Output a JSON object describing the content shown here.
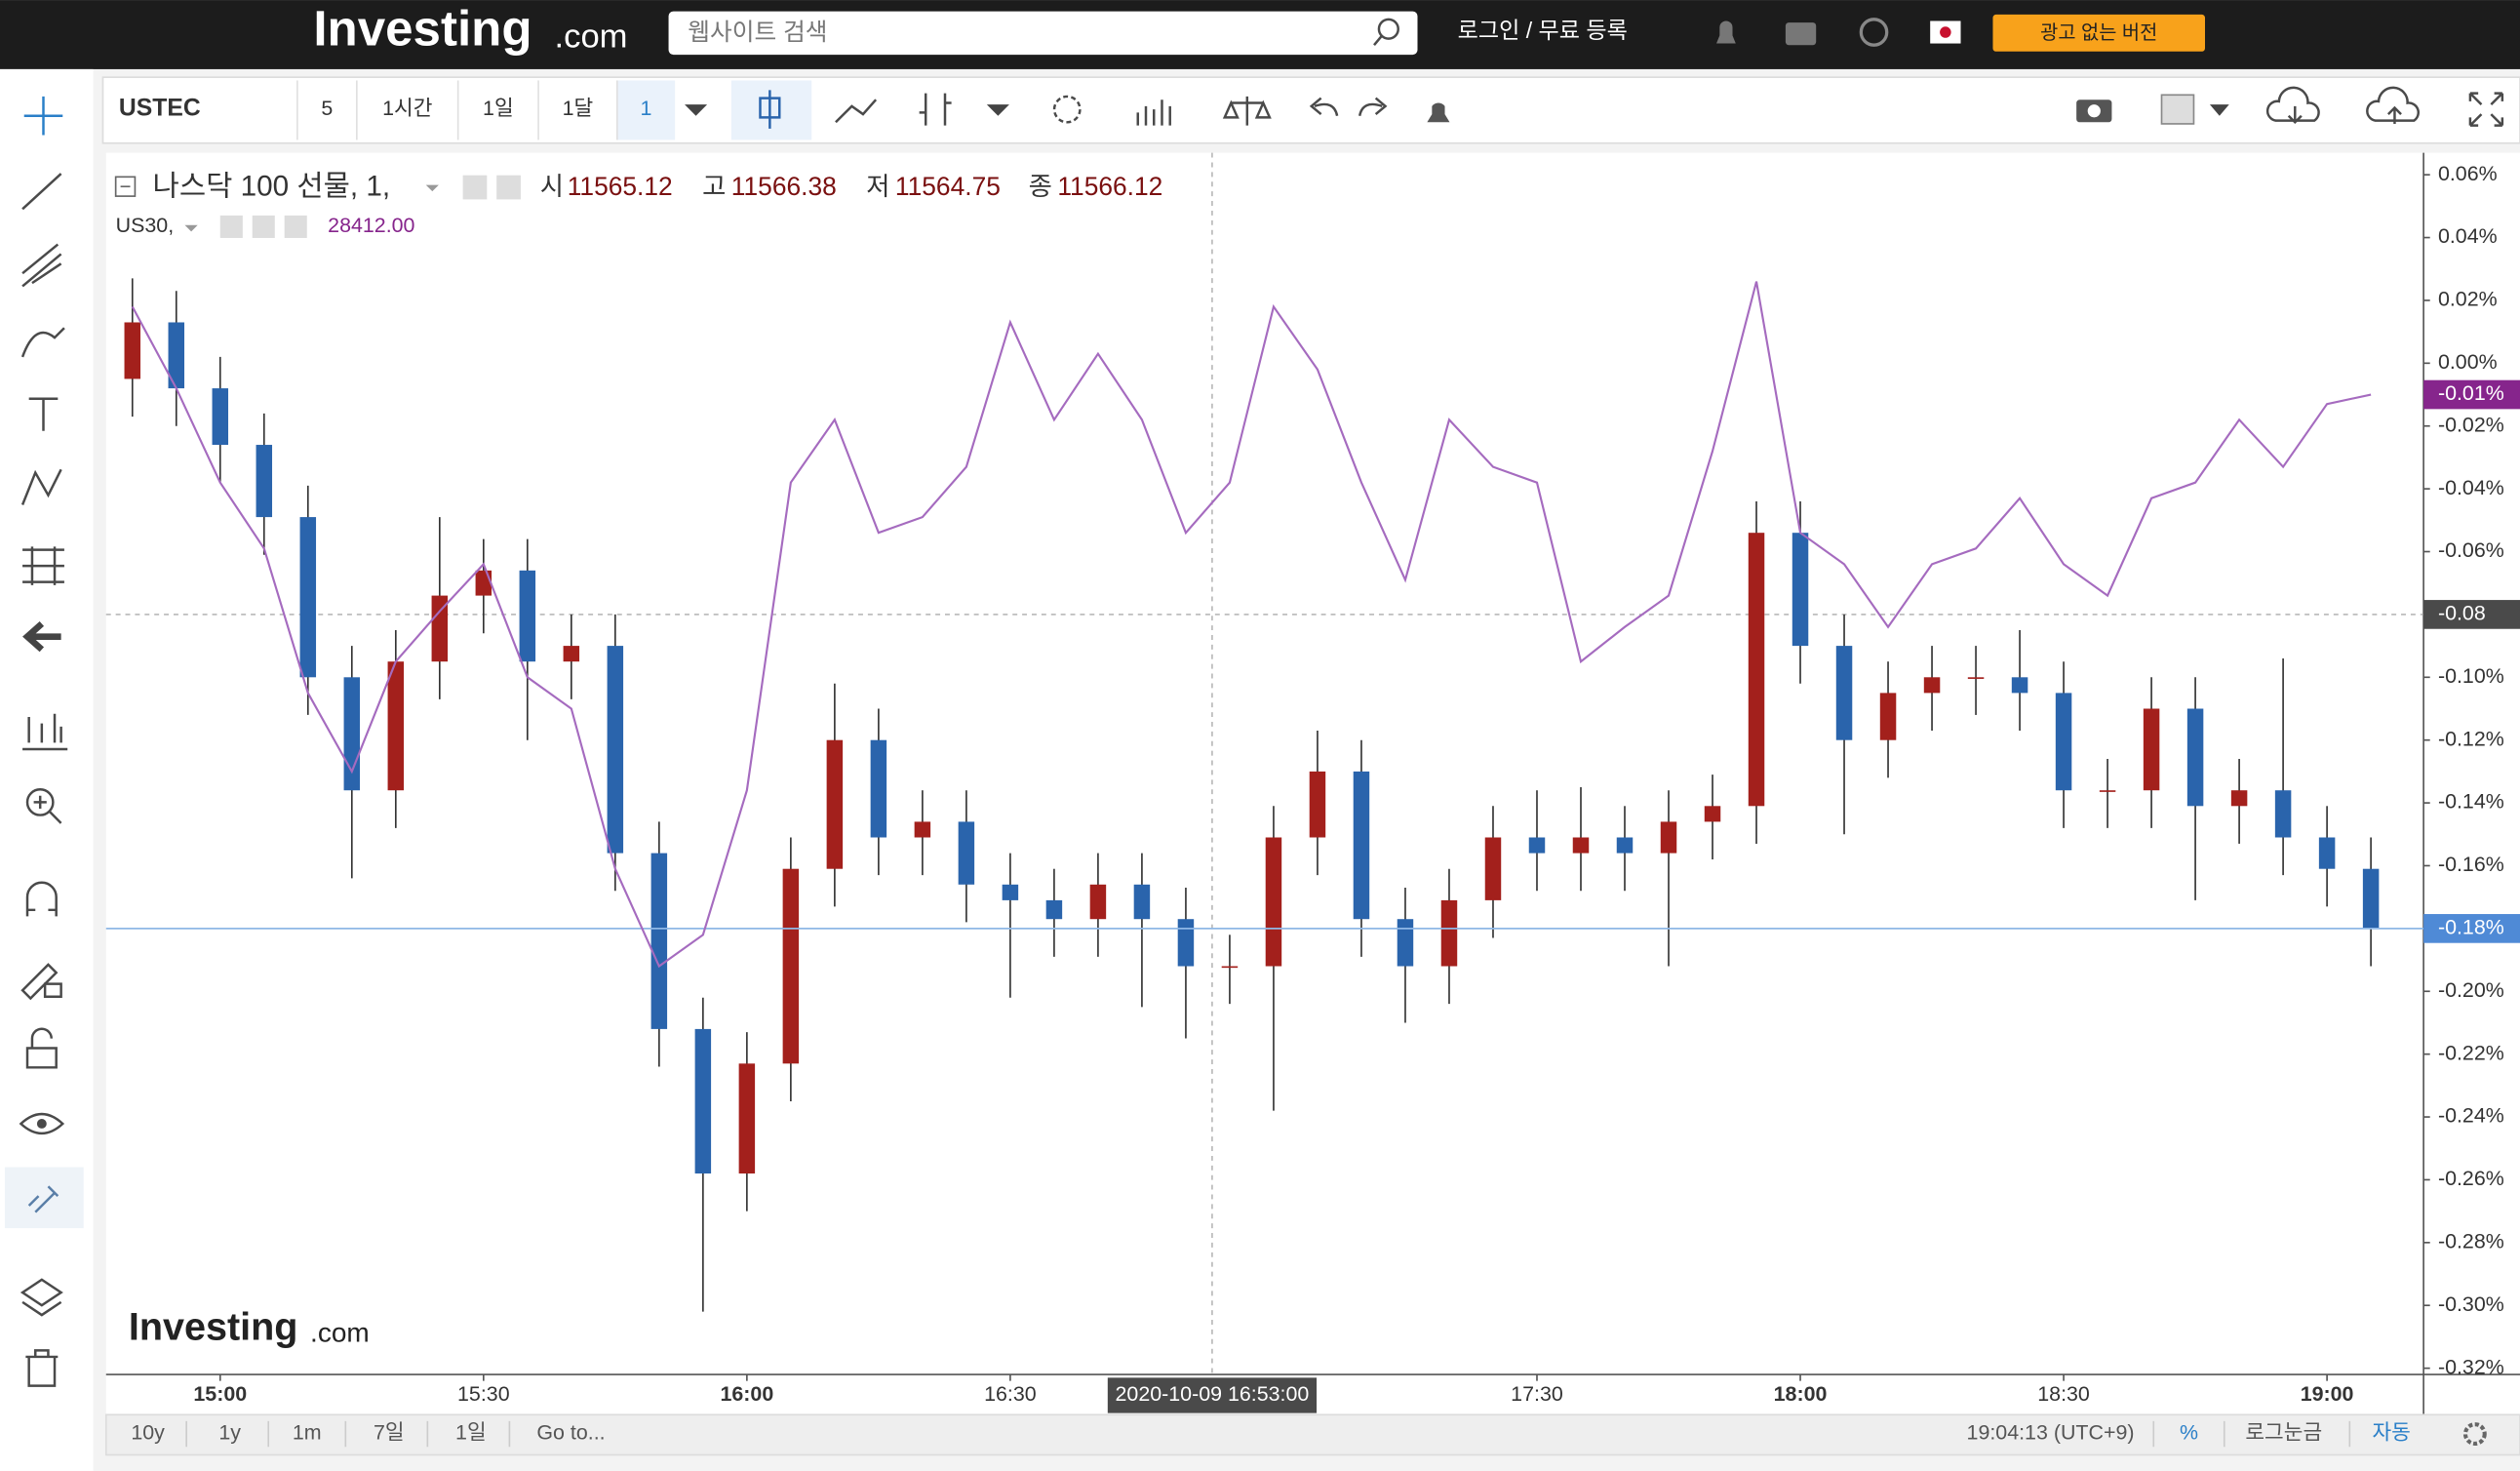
{
  "header": {
    "logo": "Investing",
    "logo_suffix": ".com",
    "search_placeholder": "웹사이트 검색",
    "login": "로그인 / 무료 등록",
    "ad_free": "광고 없는 버전"
  },
  "toolbar": {
    "symbol": "USTEC",
    "intervals": [
      "5",
      "1시간",
      "1일",
      "1달",
      "1"
    ]
  },
  "legend": {
    "fields": [
      {
        "label": "시",
        "value": "11565.12"
      },
      {
        "label": "고",
        "value": "11566.38"
      },
      {
        "label": "저",
        "value": "11564.75"
      },
      {
        "label": "종",
        "value": "11566.12"
      }
    ],
    "compare_value": "28412.00"
  },
  "watermark": {
    "logo": "Investing",
    "suffix": ".com"
  },
  "bottom_bar": {
    "ranges": [
      "10y",
      "1y",
      "1m",
      "7일",
      "1일"
    ],
    "goto": "Go to...",
    "clock": "19:04:13 (UTC+9)",
    "percent": "%",
    "log": "로그눈금",
    "auto": "자동"
  },
  "chart_data": {
    "type": "candlestick",
    "x": [
      "14:50",
      "14:55",
      "15:00",
      "15:05",
      "15:10",
      "15:15",
      "15:20",
      "15:25",
      "15:30",
      "15:35",
      "15:40",
      "15:45",
      "15:50",
      "15:55",
      "16:00",
      "16:05",
      "16:10",
      "16:15",
      "16:20",
      "16:25",
      "16:30",
      "16:35",
      "16:40",
      "16:45",
      "16:50",
      "16:55",
      "17:00",
      "17:05",
      "17:10",
      "17:15",
      "17:20",
      "17:25",
      "17:30",
      "17:35",
      "17:40",
      "17:45",
      "17:50",
      "17:55",
      "18:00",
      "18:05",
      "18:10",
      "18:15",
      "18:20",
      "18:25",
      "18:30",
      "18:35",
      "18:40",
      "18:45",
      "18:50",
      "18:55",
      "19:00",
      "19:05"
    ],
    "series": [
      {
        "name": "나스닥 100 선물, 1,",
        "type": "candlestick",
        "up_color": "#a3201c",
        "down_color": "#2a64ac",
        "line_color": "#8fb8e6",
        "label_color": "#4f8ad6",
        "open": [
          -0.005,
          0.013,
          -0.008,
          -0.026,
          -0.049,
          -0.1,
          -0.136,
          -0.095,
          -0.074,
          -0.066,
          -0.095,
          -0.09,
          -0.156,
          -0.212,
          -0.258,
          -0.223,
          -0.161,
          -0.12,
          -0.151,
          -0.146,
          -0.166,
          -0.171,
          -0.177,
          -0.166,
          -0.177,
          -0.192,
          -0.192,
          -0.151,
          -0.13,
          -0.177,
          -0.192,
          -0.171,
          -0.151,
          -0.156,
          -0.151,
          -0.156,
          -0.146,
          -0.141,
          -0.054,
          -0.09,
          -0.12,
          -0.105,
          -0.1,
          -0.1,
          -0.105,
          -0.136,
          -0.136,
          -0.11,
          -0.141,
          -0.136,
          -0.151,
          -0.161
        ],
        "high": [
          0.027,
          0.023,
          0.002,
          -0.016,
          -0.039,
          -0.09,
          -0.085,
          -0.049,
          -0.056,
          -0.056,
          -0.08,
          -0.08,
          -0.146,
          -0.202,
          -0.213,
          -0.151,
          -0.102,
          -0.11,
          -0.136,
          -0.136,
          -0.156,
          -0.161,
          -0.156,
          -0.156,
          -0.167,
          -0.182,
          -0.141,
          -0.117,
          -0.12,
          -0.167,
          -0.161,
          -0.141,
          -0.136,
          -0.135,
          -0.141,
          -0.136,
          -0.131,
          -0.044,
          -0.044,
          -0.08,
          -0.095,
          -0.09,
          -0.09,
          -0.085,
          -0.095,
          -0.126,
          -0.1,
          -0.1,
          -0.126,
          -0.094,
          -0.141,
          -0.151
        ],
        "low": [
          -0.017,
          -0.02,
          -0.038,
          -0.061,
          -0.112,
          -0.164,
          -0.148,
          -0.107,
          -0.086,
          -0.12,
          -0.107,
          -0.168,
          -0.224,
          -0.302,
          -0.27,
          -0.235,
          -0.173,
          -0.163,
          -0.163,
          -0.178,
          -0.202,
          -0.189,
          -0.189,
          -0.205,
          -0.215,
          -0.204,
          -0.238,
          -0.163,
          -0.189,
          -0.21,
          -0.204,
          -0.183,
          -0.168,
          -0.168,
          -0.168,
          -0.192,
          -0.158,
          -0.153,
          -0.102,
          -0.15,
          -0.132,
          -0.117,
          -0.112,
          -0.117,
          -0.148,
          -0.148,
          -0.148,
          -0.171,
          -0.153,
          -0.163,
          -0.173,
          -0.192
        ],
        "close": [
          0.013,
          -0.008,
          -0.026,
          -0.049,
          -0.1,
          -0.136,
          -0.095,
          -0.074,
          -0.066,
          -0.095,
          -0.09,
          -0.156,
          -0.212,
          -0.258,
          -0.223,
          -0.161,
          -0.12,
          -0.151,
          -0.146,
          -0.166,
          -0.171,
          -0.177,
          -0.166,
          -0.177,
          -0.192,
          -0.192,
          -0.151,
          -0.13,
          -0.177,
          -0.192,
          -0.171,
          -0.151,
          -0.156,
          -0.151,
          -0.156,
          -0.146,
          -0.141,
          -0.054,
          -0.09,
          -0.12,
          -0.105,
          -0.1,
          -0.1,
          -0.105,
          -0.136,
          -0.136,
          -0.11,
          -0.141,
          -0.136,
          -0.151,
          -0.161,
          -0.18
        ],
        "last_value": -0.18,
        "last_label": "-0.18%"
      },
      {
        "name": "US30,",
        "type": "line",
        "color": "#a56bbf",
        "label_color": "#86258c",
        "values": [
          0.018,
          -0.008,
          -0.038,
          -0.059,
          -0.105,
          -0.13,
          -0.095,
          -0.079,
          -0.064,
          -0.1,
          -0.11,
          -0.161,
          -0.192,
          -0.182,
          -0.136,
          -0.038,
          -0.018,
          -0.054,
          -0.049,
          -0.033,
          0.013,
          -0.018,
          0.003,
          -0.018,
          -0.054,
          -0.038,
          0.018,
          -0.002,
          -0.038,
          -0.069,
          -0.018,
          -0.033,
          -0.038,
          -0.095,
          -0.084,
          -0.074,
          -0.028,
          0.026,
          -0.054,
          -0.064,
          -0.084,
          -0.064,
          -0.059,
          -0.043,
          -0.064,
          -0.074,
          -0.043,
          -0.038,
          -0.018,
          -0.033,
          -0.013,
          -0.01
        ],
        "last_value": -0.01,
        "last_label": "-0.01%"
      }
    ],
    "xlim": [
      "14:47",
      "19:11"
    ],
    "xticks": [
      "15:00",
      "15:30",
      "16:00",
      "16:30",
      "17:30",
      "18:00",
      "18:30",
      "19:00"
    ],
    "ylim": [
      -0.322,
      0.067
    ],
    "yticks": [
      {
        "value": 0.06,
        "label": "0.06%"
      },
      {
        "value": 0.04,
        "label": "0.04%"
      },
      {
        "value": 0.02,
        "label": "0.02%"
      },
      {
        "value": 0,
        "label": "0.00%"
      },
      {
        "value": -0.02,
        "label": "-0.02%"
      },
      {
        "value": -0.04,
        "label": "-0.04%"
      },
      {
        "value": -0.06,
        "label": "-0.06%"
      },
      {
        "value": -0.08,
        "label": "-0.08%"
      },
      {
        "value": -0.1,
        "label": "-0.10%"
      },
      {
        "value": -0.12,
        "label": "-0.12%"
      },
      {
        "value": -0.14,
        "label": "-0.14%"
      },
      {
        "value": -0.16,
        "label": "-0.16%"
      },
      {
        "value": -0.18,
        "label": "-0.18%"
      },
      {
        "value": -0.2,
        "label": "-0.20%"
      },
      {
        "value": -0.22,
        "label": "-0.22%"
      },
      {
        "value": -0.24,
        "label": "-0.24%"
      },
      {
        "value": -0.26,
        "label": "-0.26%"
      },
      {
        "value": -0.28,
        "label": "-0.28%"
      },
      {
        "value": -0.3,
        "label": "-0.30%"
      },
      {
        "value": -0.32,
        "label": "-0.32%"
      }
    ],
    "grid": false,
    "crosshair": {
      "x": "16:53",
      "y": -0.08,
      "x_label": "2020-10-09 16:53:00"
    }
  }
}
